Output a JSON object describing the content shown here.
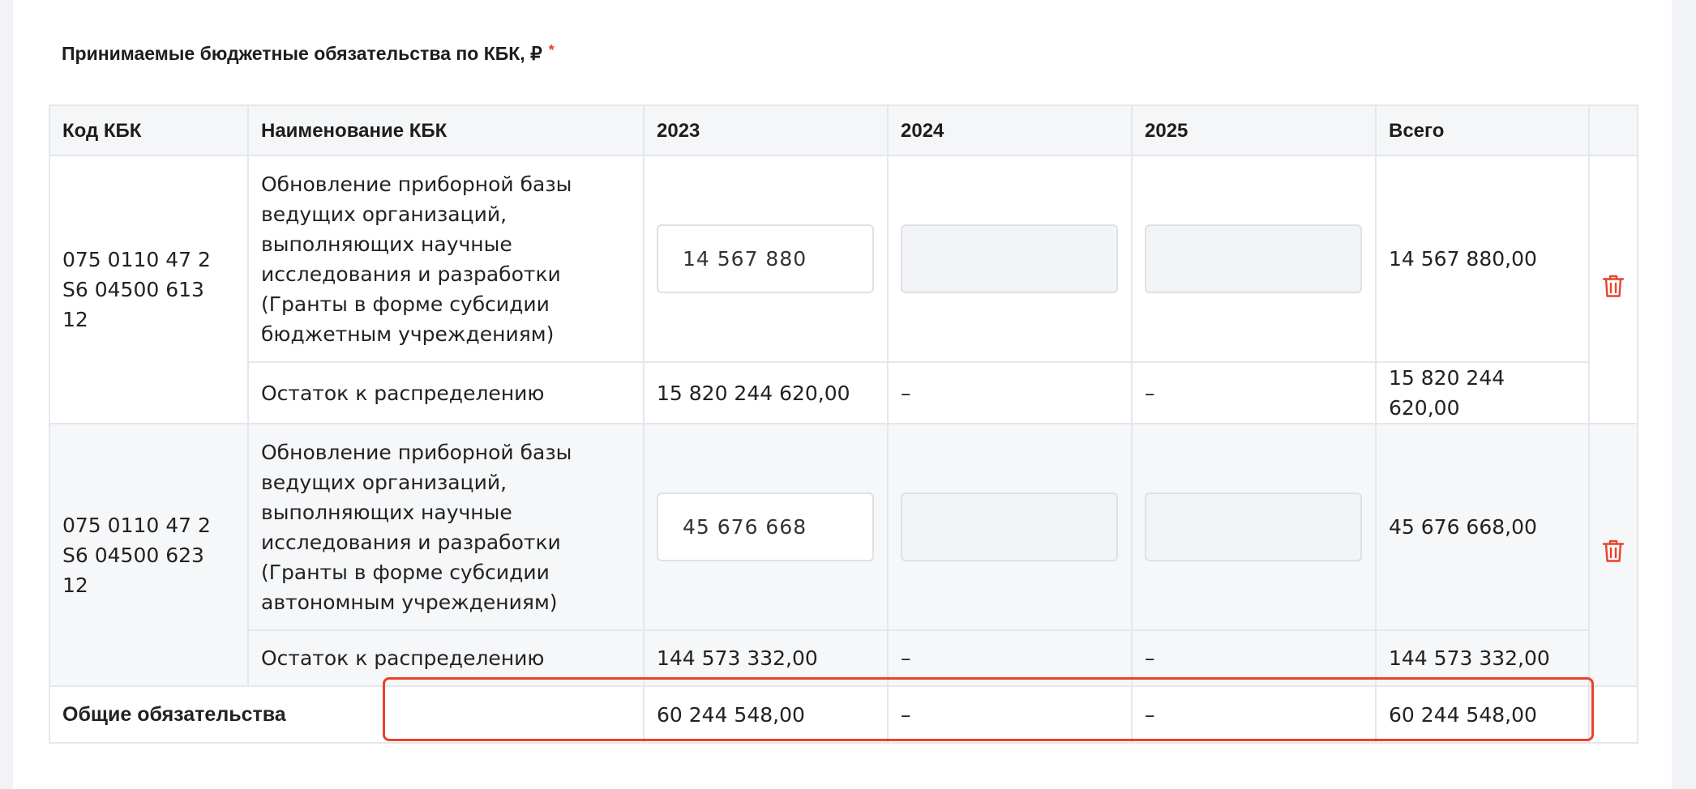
{
  "section": {
    "title": "Принимаемые бюджетные обязательства по КБК, ₽",
    "required_mark": "*"
  },
  "table": {
    "headers": {
      "code": "Код КБК",
      "name": "Наименование КБК",
      "y2023": "2023",
      "y2024": "2024",
      "y2025": "2025",
      "total": "Всего"
    },
    "rows": [
      {
        "code": "075 0110 47 2 S6 04500 613 12",
        "name": "Обновление приборной базы ведущих организаций, выполняющих научные исследования и разработки (Гранты в форме субсидии бюджетным учреждениям)",
        "value_2023": "14 567 880",
        "value_2024": "",
        "value_2025": "",
        "total": "14 567 880,00",
        "remainder_label": "Остаток к распределению",
        "remainder_2023": "15 820 244 620,00",
        "remainder_2024": "–",
        "remainder_2025": "–",
        "remainder_total": "15 820 244 620,00"
      },
      {
        "code": "075 0110 47 2 S6 04500 623 12",
        "name": "Обновление приборной базы ведущих организаций, выполняющих научные исследования и разработки (Гранты в форме субсидии автономным учреждениям)",
        "value_2023": "45 676 668",
        "value_2024": "",
        "value_2025": "",
        "total": "45 676 668,00",
        "remainder_label": "Остаток к распределению",
        "remainder_2023": "144 573 332,00",
        "remainder_2024": "–",
        "remainder_2025": "–",
        "remainder_total": "144 573 332,00"
      }
    ],
    "footer": {
      "label": "Общие обязательства",
      "value_2023": "60 244 548,00",
      "value_2024": "–",
      "value_2025": "–",
      "total": "60 244 548,00"
    }
  },
  "icons": {
    "delete": "trash-icon"
  },
  "colors": {
    "accent": "#e8432b",
    "header_bg": "#f5f6f8",
    "border": "#e4e7ec"
  }
}
